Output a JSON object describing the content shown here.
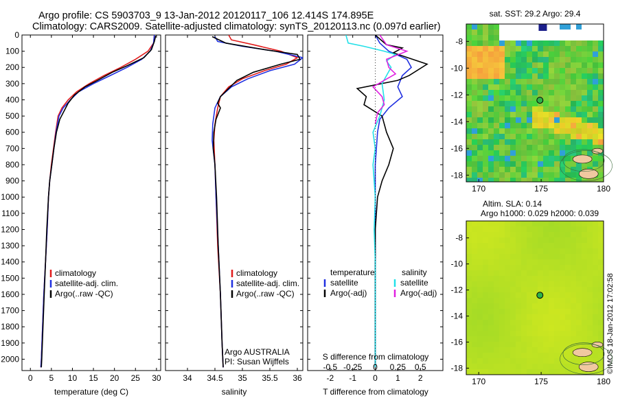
{
  "header": {
    "line1": "Argo profile: CS 5903703_9 13-Jan-2012 20120117_106 12.414S 174.895E",
    "line2": "Climatology: CARS2009. Satellite-adjusted climatology: synTS_20120113.nc (0.097d earlier)"
  },
  "timestamp": "©IMOS 18-Jan-2012 17:02:58",
  "colors": {
    "climatology": "#e11b1b",
    "satellite": "#1f2fe0",
    "argo": "#000000",
    "cyan": "#22e0e8",
    "magenta": "#e020e0"
  },
  "chart_data": [
    {
      "type": "line",
      "id": "temperature",
      "xlabel": "temperature (deg C)",
      "xlim": [
        -2,
        31
      ],
      "ylim": [
        2070,
        0
      ],
      "xticks": [
        0,
        5,
        10,
        15,
        20,
        25,
        30
      ],
      "xtick_labels": [
        "0",
        "5",
        "10",
        "15",
        "20",
        "25",
        "30"
      ],
      "yticks": [
        0,
        100,
        200,
        300,
        400,
        500,
        600,
        700,
        800,
        900,
        1000,
        1100,
        1200,
        1300,
        1400,
        1500,
        1600,
        1700,
        1800,
        1900,
        2000
      ],
      "ytick_labels": [
        "0",
        "100",
        "200",
        "300",
        "400",
        "500",
        "600",
        "700",
        "800",
        "900",
        "1000",
        "1100",
        "1200",
        "1300",
        "1400",
        "1500",
        "1600",
        "1700",
        "1800",
        "1900",
        "2000"
      ],
      "legend": [
        "climatology",
        "satellite-adj. clim.",
        "Argo(..raw -QC)"
      ],
      "series": [
        {
          "name": "climatology",
          "color_key": "climatology",
          "points": [
            [
              29.5,
              0
            ],
            [
              29.3,
              50
            ],
            [
              28,
              100
            ],
            [
              25,
              150
            ],
            [
              21.5,
              200
            ],
            [
              17.5,
              250
            ],
            [
              14,
              300
            ],
            [
              11,
              350
            ],
            [
              9,
              400
            ],
            [
              7.5,
              450
            ],
            [
              6.6,
              500
            ],
            [
              6,
              600
            ],
            [
              5.5,
              700
            ],
            [
              5,
              800
            ],
            [
              4.6,
              900
            ],
            [
              4.3,
              1000
            ],
            [
              4,
              1200
            ],
            [
              3.6,
              1400
            ],
            [
              3.2,
              1600
            ],
            [
              2.9,
              1800
            ],
            [
              2.6,
              2000
            ],
            [
              2.5,
              2050
            ]
          ]
        },
        {
          "name": "satellite-adj. clim.",
          "color_key": "satellite",
          "points": [
            [
              29.5,
              0
            ],
            [
              29.3,
              50
            ],
            [
              28.5,
              100
            ],
            [
              26.5,
              150
            ],
            [
              23,
              200
            ],
            [
              19,
              250
            ],
            [
              15,
              300
            ],
            [
              11.5,
              350
            ],
            [
              9.5,
              400
            ],
            [
              7.8,
              450
            ],
            [
              6.8,
              500
            ],
            [
              6.1,
              600
            ],
            [
              5.6,
              700
            ],
            [
              5.1,
              800
            ],
            [
              4.6,
              900
            ],
            [
              4.3,
              1000
            ],
            [
              4,
              1200
            ],
            [
              3.6,
              1400
            ],
            [
              3.2,
              1600
            ],
            [
              2.9,
              1800
            ],
            [
              2.6,
              2000
            ],
            [
              2.5,
              2050
            ]
          ]
        },
        {
          "name": "Argo(..raw -QC)",
          "color_key": "argo",
          "points": [
            [
              29.8,
              5
            ],
            [
              29.5,
              40
            ],
            [
              28.8,
              90
            ],
            [
              27,
              140
            ],
            [
              23,
              190
            ],
            [
              19.5,
              230
            ],
            [
              16,
              280
            ],
            [
              13,
              320
            ],
            [
              10.5,
              370
            ],
            [
              9,
              420
            ],
            [
              8,
              470
            ],
            [
              7,
              520
            ],
            [
              6.2,
              600
            ],
            [
              5.6,
              700
            ],
            [
              5.1,
              800
            ],
            [
              4.6,
              900
            ],
            [
              4.3,
              1000
            ],
            [
              3.9,
              1200
            ],
            [
              3.6,
              1400
            ],
            [
              3.3,
              1600
            ],
            [
              3,
              1800
            ],
            [
              2.7,
              2000
            ],
            [
              2.6,
              2050
            ]
          ]
        }
      ]
    },
    {
      "type": "line",
      "id": "salinity",
      "xlabel": "salinity",
      "xlim": [
        33.6,
        36.1
      ],
      "ylim": [
        2070,
        0
      ],
      "xticks": [
        34,
        34.5,
        35,
        35.5,
        36
      ],
      "xtick_labels": [
        "34",
        "34.5",
        "35",
        "35.5",
        "36"
      ],
      "legend": [
        "climatology",
        "satellite-adj. clim.",
        "Argo(..raw -QC)"
      ],
      "annotation": [
        "Argo AUSTRALIA",
        "PI: Susan Wijffels"
      ],
      "series": [
        {
          "name": "climatology",
          "color_key": "climatology",
          "points": [
            [
              34.75,
              0
            ],
            [
              34.8,
              30
            ],
            [
              35.2,
              60
            ],
            [
              35.7,
              100
            ],
            [
              36.0,
              140
            ],
            [
              35.8,
              180
            ],
            [
              35.4,
              220
            ],
            [
              35.0,
              270
            ],
            [
              34.75,
              320
            ],
            [
              34.6,
              380
            ],
            [
              34.55,
              450
            ],
            [
              34.5,
              550
            ],
            [
              34.48,
              650
            ],
            [
              34.5,
              800
            ],
            [
              34.52,
              1000
            ],
            [
              34.55,
              1300
            ],
            [
              34.6,
              1600
            ],
            [
              34.63,
              1900
            ],
            [
              34.65,
              2050
            ]
          ]
        },
        {
          "name": "satellite-adj. clim.",
          "color_key": "satellite",
          "points": [
            [
              34.5,
              10
            ],
            [
              34.55,
              40
            ],
            [
              35.0,
              70
            ],
            [
              35.6,
              100
            ],
            [
              36.1,
              140
            ],
            [
              35.95,
              180
            ],
            [
              35.5,
              220
            ],
            [
              35.1,
              270
            ],
            [
              34.8,
              320
            ],
            [
              34.6,
              380
            ],
            [
              34.5,
              450
            ],
            [
              34.46,
              550
            ],
            [
              34.45,
              650
            ],
            [
              34.5,
              800
            ],
            [
              34.52,
              1000
            ],
            [
              34.56,
              1300
            ],
            [
              34.6,
              1600
            ],
            [
              34.63,
              1900
            ],
            [
              34.65,
              2050
            ]
          ]
        },
        {
          "name": "Argo(..raw -QC)",
          "color_key": "argo",
          "points": [
            [
              34.45,
              10
            ],
            [
              34.7,
              50
            ],
            [
              35.4,
              90
            ],
            [
              36.0,
              120
            ],
            [
              36.05,
              150
            ],
            [
              35.7,
              180
            ],
            [
              35.2,
              230
            ],
            [
              34.9,
              280
            ],
            [
              34.75,
              330
            ],
            [
              34.6,
              380
            ],
            [
              34.55,
              420
            ],
            [
              34.6,
              450
            ],
            [
              34.52,
              520
            ],
            [
              34.48,
              600
            ],
            [
              34.47,
              700
            ],
            [
              34.5,
              800
            ],
            [
              34.53,
              1000
            ],
            [
              34.56,
              1300
            ],
            [
              34.6,
              1600
            ],
            [
              34.63,
              1900
            ],
            [
              34.65,
              2050
            ]
          ]
        }
      ]
    },
    {
      "type": "line",
      "id": "difference",
      "xlabel": "T difference from climatology",
      "xlabel2": "S difference from climatology",
      "xlim": [
        -3,
        3
      ],
      "ylim": [
        2070,
        0
      ],
      "xticks": [
        -2,
        -1,
        0,
        1,
        2
      ],
      "xtick_labels": [
        "-2",
        "-1",
        "0",
        "1",
        "2"
      ],
      "s_ticks": [
        -0.5,
        -0.25,
        0,
        0.25,
        0.5
      ],
      "s_tick_labels": [
        "-0.5",
        "-0.25",
        "0",
        "0.25",
        "0.5"
      ],
      "legend_temperature_title": "temperature",
      "legend_salinity_title": "salinity",
      "legend_satellite": "satellite",
      "legend_argo": "Argo(-adj)",
      "series": [
        {
          "name": "temperature satellite",
          "color_key": "satellite",
          "points": [
            [
              0,
              0
            ],
            [
              0.2,
              50
            ],
            [
              0.6,
              100
            ],
            [
              1.4,
              150
            ],
            [
              1.6,
              200
            ],
            [
              1.2,
              250
            ],
            [
              1,
              320
            ],
            [
              1.2,
              380
            ],
            [
              0.6,
              450
            ],
            [
              0.2,
              520
            ],
            [
              0.1,
              600
            ],
            [
              0,
              800
            ],
            [
              0,
              1100
            ],
            [
              0,
              1500
            ],
            [
              0,
              2050
            ]
          ]
        },
        {
          "name": "temperature Argo(-adj)",
          "color_key": "argo",
          "points": [
            [
              0,
              0
            ],
            [
              0.5,
              60
            ],
            [
              1.2,
              80
            ],
            [
              0.8,
              110
            ],
            [
              2.3,
              180
            ],
            [
              1.5,
              250
            ],
            [
              1.0,
              280
            ],
            [
              -0.8,
              330
            ],
            [
              -0.4,
              380
            ],
            [
              -0.5,
              430
            ],
            [
              0.3,
              500
            ],
            [
              0.5,
              600
            ],
            [
              0.8,
              700
            ],
            [
              0.6,
              800
            ],
            [
              0.3,
              900
            ],
            [
              0.1,
              1000
            ],
            [
              0,
              1200
            ],
            [
              0,
              1500
            ],
            [
              0,
              2050
            ]
          ]
        },
        {
          "name": "salinity satellite",
          "color_key": "cyan",
          "points": [
            [
              -1.3,
              0
            ],
            [
              -1.2,
              50
            ],
            [
              -0.5,
              70
            ],
            [
              0.4,
              100
            ],
            [
              0.9,
              120
            ],
            [
              0.5,
              160
            ],
            [
              0.7,
              200
            ],
            [
              0.5,
              250
            ],
            [
              0.3,
              300
            ],
            [
              0.4,
              400
            ],
            [
              0.2,
              500
            ],
            [
              -0.1,
              600
            ],
            [
              0,
              700
            ],
            [
              -0.1,
              800
            ],
            [
              0,
              1000
            ],
            [
              -0.05,
              1200
            ],
            [
              0,
              1400
            ],
            [
              0,
              1700
            ],
            [
              0,
              2050
            ]
          ]
        },
        {
          "name": "salinity Argo(-adj)",
          "color_key": "magenta",
          "points": [
            [
              0.2,
              0
            ],
            [
              0.5,
              60
            ],
            [
              1.4,
              100
            ],
            [
              0.5,
              150
            ],
            [
              0.6,
              200
            ],
            [
              0.9,
              240
            ],
            [
              0.4,
              280
            ],
            [
              -0.1,
              320
            ],
            [
              0.3,
              380
            ],
            [
              0.4,
              430
            ],
            [
              0.1,
              480
            ],
            [
              0,
              550
            ]
          ]
        }
      ]
    },
    {
      "type": "heatmap",
      "id": "sst_map",
      "title": "sat. SST: 29.2  Argo: 29.4",
      "xlim": [
        169,
        180
      ],
      "ylim": [
        -18.5,
        -6.7
      ],
      "xticks": [
        170,
        175,
        180
      ],
      "xtick_labels": [
        "170",
        "175",
        "180"
      ],
      "yticks": [
        -8,
        -10,
        -12,
        -14,
        -16,
        -18
      ],
      "ytick_labels": [
        "-8",
        "-10",
        "-12",
        "-14",
        "-16",
        "-18"
      ],
      "profile_location": [
        174.9,
        -12.4
      ]
    },
    {
      "type": "heatmap",
      "id": "sla_map",
      "title": "Altim. SLA: 0.14",
      "subtitle": "Argo h1000: 0.029 h2000: 0.039",
      "xlim": [
        169,
        180
      ],
      "ylim": [
        -18.5,
        -6.7
      ],
      "xticks": [
        170,
        175,
        180
      ],
      "xtick_labels": [
        "170",
        "175",
        "180"
      ],
      "yticks": [
        -8,
        -10,
        -12,
        -14,
        -16,
        -18
      ],
      "ytick_labels": [
        "-8",
        "-10",
        "-12",
        "-14",
        "-16",
        "-18"
      ],
      "profile_location": [
        174.9,
        -12.4
      ]
    }
  ]
}
